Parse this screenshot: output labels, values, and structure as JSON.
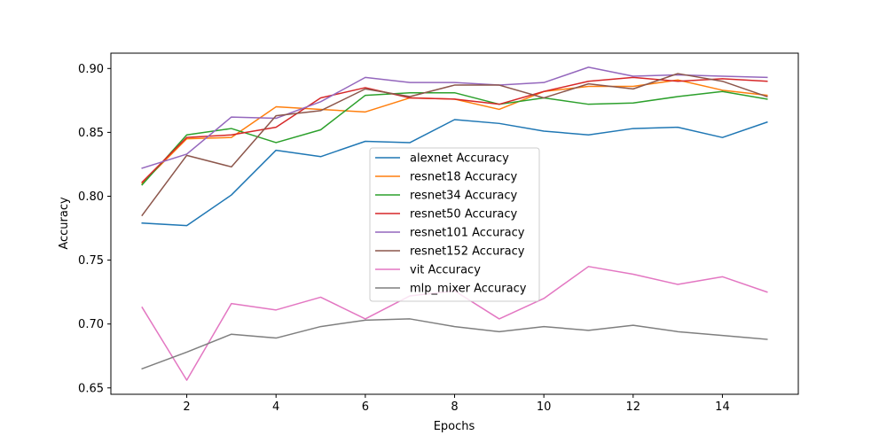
{
  "chart_data": {
    "type": "line",
    "title": "",
    "xlabel": "Epochs",
    "ylabel": "Accuracy",
    "xlim": [
      0.3,
      15.7
    ],
    "ylim": [
      0.645,
      0.912
    ],
    "xticks": [
      2,
      4,
      6,
      8,
      10,
      12,
      14
    ],
    "yticks": [
      0.65,
      0.7,
      0.75,
      0.8,
      0.85,
      0.9
    ],
    "ytick_labels": [
      "0.65",
      "0.70",
      "0.75",
      "0.80",
      "0.85",
      "0.90"
    ],
    "grid": false,
    "legend_position": "center",
    "x": [
      1,
      2,
      3,
      4,
      5,
      6,
      7,
      8,
      9,
      10,
      11,
      12,
      13,
      14,
      15
    ],
    "series": [
      {
        "name": "alexnet Accuracy",
        "color": "#1f77b4",
        "values": [
          0.779,
          0.777,
          0.801,
          0.836,
          0.831,
          0.843,
          0.842,
          0.86,
          0.857,
          0.851,
          0.848,
          0.853,
          0.854,
          0.846,
          0.858
        ]
      },
      {
        "name": "resnet18 Accuracy",
        "color": "#ff7f0e",
        "values": [
          0.81,
          0.845,
          0.846,
          0.87,
          0.868,
          0.866,
          0.877,
          0.876,
          0.868,
          0.882,
          0.886,
          0.886,
          0.891,
          0.883,
          0.879
        ]
      },
      {
        "name": "resnet34 Accuracy",
        "color": "#2ca02c",
        "values": [
          0.809,
          0.848,
          0.853,
          0.842,
          0.852,
          0.879,
          0.881,
          0.881,
          0.872,
          0.877,
          0.872,
          0.873,
          0.878,
          0.882,
          0.876
        ]
      },
      {
        "name": "resnet50 Accuracy",
        "color": "#d62728",
        "values": [
          0.811,
          0.846,
          0.848,
          0.854,
          0.877,
          0.885,
          0.877,
          0.876,
          0.872,
          0.882,
          0.89,
          0.893,
          0.89,
          0.892,
          0.89
        ]
      },
      {
        "name": "resnet101 Accuracy",
        "color": "#9467bd",
        "values": [
          0.822,
          0.833,
          0.862,
          0.861,
          0.874,
          0.893,
          0.889,
          0.889,
          0.887,
          0.889,
          0.901,
          0.894,
          0.895,
          0.894,
          0.893
        ]
      },
      {
        "name": "resnet152 Accuracy",
        "color": "#8c564b",
        "values": [
          0.785,
          0.832,
          0.823,
          0.863,
          0.867,
          0.884,
          0.878,
          0.887,
          0.887,
          0.877,
          0.888,
          0.884,
          0.896,
          0.89,
          0.878
        ]
      },
      {
        "name": "vit Accuracy",
        "color": "#e377c2",
        "values": [
          0.713,
          0.656,
          0.716,
          0.711,
          0.721,
          0.704,
          0.722,
          0.726,
          0.704,
          0.72,
          0.745,
          0.739,
          0.731,
          0.737,
          0.725
        ]
      },
      {
        "name": "mlp_mixer Accuracy",
        "color": "#7f7f7f",
        "values": [
          0.665,
          0.678,
          0.692,
          0.689,
          0.698,
          0.703,
          0.704,
          0.698,
          0.694,
          0.698,
          0.695,
          0.699,
          0.694,
          0.691,
          0.688
        ]
      }
    ]
  }
}
